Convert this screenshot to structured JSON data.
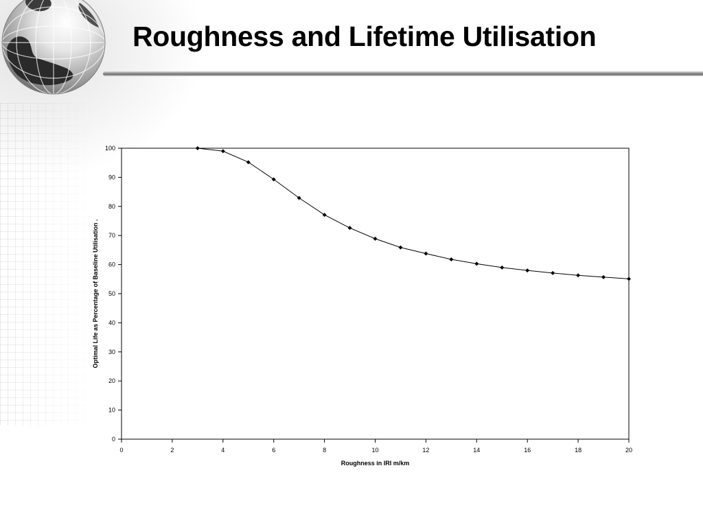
{
  "slide": {
    "title": "Roughness and Lifetime Utilisation"
  },
  "icons": [
    "globe-icon"
  ],
  "chart_data": {
    "type": "line",
    "title": "",
    "xlabel": "Roughness in IRI m/km",
    "ylabel": "Optimal Life as Percentage of Baseline Utilisation .",
    "xlim": [
      0,
      20
    ],
    "ylim": [
      0,
      100
    ],
    "xticks": [
      0,
      2,
      4,
      6,
      8,
      10,
      12,
      14,
      16,
      18,
      20
    ],
    "yticks": [
      0,
      10,
      20,
      30,
      40,
      50,
      60,
      70,
      80,
      90,
      100
    ],
    "grid": false,
    "legend": "none",
    "line_color": "#000000",
    "marker": "diamond",
    "series": [
      {
        "x": [
          3,
          4,
          5,
          6,
          7,
          8,
          9,
          10,
          11,
          12,
          13,
          14,
          15,
          16,
          17,
          18,
          19,
          20
        ],
        "values": [
          100,
          99,
          95.2,
          89.3,
          82.9,
          77.1,
          72.6,
          68.9,
          65.9,
          63.8,
          61.8,
          60.3,
          59.0,
          58.0,
          57.1,
          56.3,
          55.7,
          55.1
        ]
      }
    ]
  }
}
